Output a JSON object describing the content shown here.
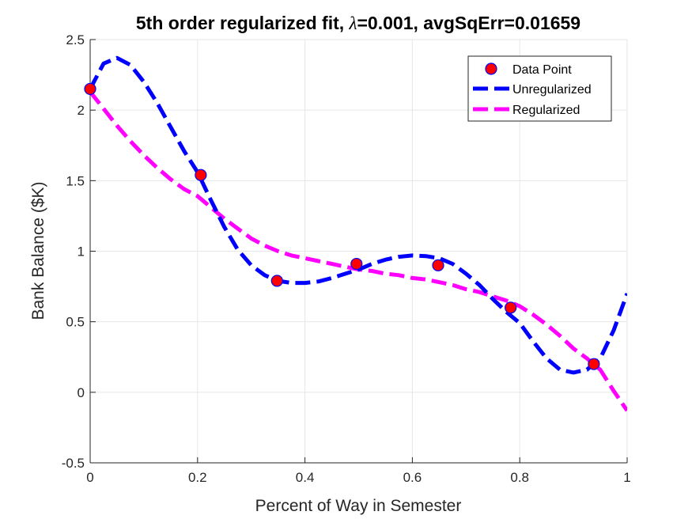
{
  "chart_data": {
    "type": "line",
    "title": {
      "prefix": "5th order regularized fit, ",
      "lambda_symbol": "λ",
      "suffix": "=0.001, avgSqErr=0.01659"
    },
    "xlabel": "Percent of Way in Semester",
    "ylabel": "Bank Balance ($K)",
    "xlim": [
      0,
      1
    ],
    "ylim": [
      -0.5,
      2.5
    ],
    "xticks": [
      0,
      0.2,
      0.4,
      0.6,
      0.8,
      1
    ],
    "xtick_labels": [
      "0",
      "0.2",
      "0.4",
      "0.6",
      "0.8",
      "1"
    ],
    "yticks": [
      -0.5,
      0,
      0.5,
      1,
      1.5,
      2,
      2.5
    ],
    "ytick_labels": [
      "-0.5",
      "0",
      "0.5",
      "1",
      "1.5",
      "2",
      "2.5"
    ],
    "grid": true,
    "legend_placement": "top-right",
    "series": [
      {
        "name": "Data Point",
        "kind": "markers",
        "marker_fill": "#ff0000",
        "marker_edge": "#0000ff",
        "x": [
          0,
          0.206,
          0.348,
          0.496,
          0.648,
          0.783,
          0.938
        ],
        "y": [
          2.15,
          1.54,
          0.79,
          0.91,
          0.9,
          0.6,
          0.2
        ]
      },
      {
        "name": "Unregularized",
        "kind": "dashed-line",
        "color": "#0000ff",
        "x": [
          0,
          0.025,
          0.05,
          0.075,
          0.1,
          0.125,
          0.15,
          0.175,
          0.2,
          0.225,
          0.25,
          0.275,
          0.3,
          0.325,
          0.35,
          0.375,
          0.4,
          0.425,
          0.45,
          0.475,
          0.5,
          0.525,
          0.55,
          0.575,
          0.6,
          0.625,
          0.65,
          0.675,
          0.7,
          0.725,
          0.75,
          0.775,
          0.8,
          0.825,
          0.85,
          0.875,
          0.9,
          0.925,
          0.95,
          0.975,
          1.0
        ],
        "y": [
          2.15,
          2.33,
          2.37,
          2.32,
          2.2,
          2.05,
          1.88,
          1.71,
          1.56,
          1.36,
          1.17,
          1.01,
          0.9,
          0.83,
          0.79,
          0.775,
          0.775,
          0.785,
          0.81,
          0.84,
          0.87,
          0.91,
          0.94,
          0.96,
          0.97,
          0.965,
          0.95,
          0.91,
          0.84,
          0.76,
          0.66,
          0.57,
          0.49,
          0.36,
          0.24,
          0.16,
          0.14,
          0.16,
          0.24,
          0.44,
          0.7
        ]
      },
      {
        "name": "Regularized",
        "kind": "dashed-line",
        "color": "#ff00ff",
        "x": [
          0,
          0.025,
          0.05,
          0.075,
          0.1,
          0.125,
          0.15,
          0.175,
          0.2,
          0.225,
          0.25,
          0.275,
          0.3,
          0.325,
          0.35,
          0.375,
          0.4,
          0.425,
          0.45,
          0.475,
          0.5,
          0.525,
          0.55,
          0.575,
          0.6,
          0.625,
          0.65,
          0.675,
          0.7,
          0.725,
          0.75,
          0.775,
          0.8,
          0.825,
          0.85,
          0.875,
          0.9,
          0.925,
          0.95,
          0.975,
          1.0
        ],
        "y": [
          2.13,
          2.01,
          1.89,
          1.78,
          1.68,
          1.59,
          1.51,
          1.44,
          1.39,
          1.31,
          1.23,
          1.16,
          1.09,
          1.04,
          1.0,
          0.97,
          0.95,
          0.93,
          0.91,
          0.89,
          0.87,
          0.86,
          0.84,
          0.83,
          0.81,
          0.8,
          0.78,
          0.76,
          0.73,
          0.71,
          0.68,
          0.65,
          0.61,
          0.55,
          0.48,
          0.4,
          0.31,
          0.24,
          0.16,
          0.01,
          -0.13
        ]
      }
    ]
  }
}
